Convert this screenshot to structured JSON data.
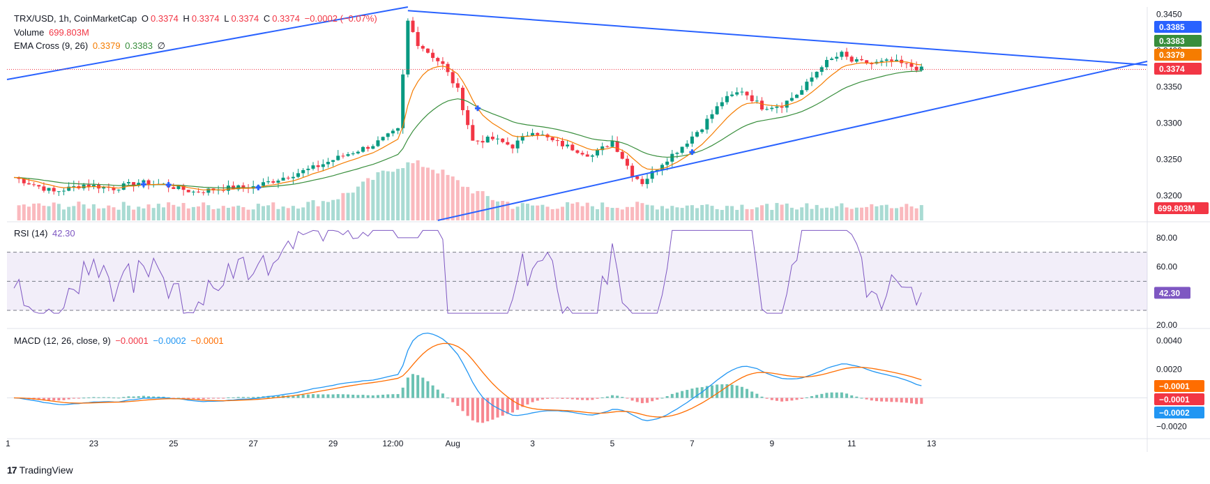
{
  "header": {
    "symbol": "TRX/USD, 1h, CoinMarketCap",
    "o_label": "O",
    "o": "0.3374",
    "h_label": "H",
    "h": "0.3374",
    "l_label": "L",
    "l": "0.3374",
    "c_label": "C",
    "c": "0.3374",
    "change": "−0.0002 (−0.07%)",
    "volume_label": "Volume",
    "volume": "699.803M",
    "ema_label": "EMA Cross (9, 26)",
    "ema_fast": "0.3379",
    "ema_slow": "0.3383",
    "ema_extra": "∅",
    "rsi_label": "RSI (14)",
    "rsi": "42.30",
    "macd_label": "MACD (12, 26, close, 9)",
    "macd_hist": "−0.0001",
    "macd_line": "−0.0002",
    "macd_signal": "−0.0001"
  },
  "footer": {
    "brand": "TradingView",
    "logo": "17"
  },
  "colors": {
    "up": "#089981",
    "down": "#f23645",
    "ema_fast": "#f57c00",
    "ema_slow": "#388e3c",
    "trend": "#2962ff",
    "rsi": "#7e57c2",
    "macd": "#2196f3",
    "signal": "#ff6d00",
    "cross": "#2962ff"
  },
  "chart_data": {
    "type": "candlestick",
    "symbol": "TRX/USD",
    "interval": "1h",
    "x_ticks": [
      "1",
      "23",
      "25",
      "27",
      "29",
      "12:00",
      "Aug",
      "3",
      "5",
      "7",
      "9",
      "11",
      "13"
    ],
    "price_axis": {
      "ticks": [
        0.32,
        0.325,
        0.33,
        0.335,
        0.34,
        0.345
      ],
      "tick_labels": [
        "0.3200",
        "0.3250",
        "0.3300",
        "0.3350",
        "0.3400",
        "0.3450"
      ],
      "range": [
        0.3185,
        0.346
      ]
    },
    "price_tags": [
      {
        "label": "0.3385",
        "value": 0.3385,
        "color": "#2962ff"
      },
      {
        "label": "0.3383",
        "value": 0.3383,
        "color": "#388e3c"
      },
      {
        "label": "0.3379",
        "value": 0.3379,
        "color": "#f57c00"
      },
      {
        "label": "0.3374",
        "value": 0.3374,
        "color": "#f23645"
      }
    ],
    "volume_tag": "699.803M",
    "close_path": [
      {
        "x": 0,
        "y": 0.3225
      },
      {
        "x": 8,
        "y": 0.3205
      },
      {
        "x": 14,
        "y": 0.3215
      },
      {
        "x": 20,
        "y": 0.321
      },
      {
        "x": 25,
        "y": 0.3218
      },
      {
        "x": 30,
        "y": 0.3215
      },
      {
        "x": 36,
        "y": 0.3205
      },
      {
        "x": 42,
        "y": 0.321
      },
      {
        "x": 48,
        "y": 0.3212
      },
      {
        "x": 54,
        "y": 0.3225
      },
      {
        "x": 60,
        "y": 0.3238
      },
      {
        "x": 66,
        "y": 0.3255
      },
      {
        "x": 72,
        "y": 0.327
      },
      {
        "x": 77,
        "y": 0.329
      },
      {
        "x": 79,
        "y": 0.344
      },
      {
        "x": 81,
        "y": 0.341
      },
      {
        "x": 86,
        "y": 0.338
      },
      {
        "x": 89,
        "y": 0.3345
      },
      {
        "x": 92,
        "y": 0.3275
      },
      {
        "x": 96,
        "y": 0.3278
      },
      {
        "x": 100,
        "y": 0.3268
      },
      {
        "x": 104,
        "y": 0.329
      },
      {
        "x": 108,
        "y": 0.3275
      },
      {
        "x": 112,
        "y": 0.3265
      },
      {
        "x": 116,
        "y": 0.3255
      },
      {
        "x": 120,
        "y": 0.3275
      },
      {
        "x": 124,
        "y": 0.323
      },
      {
        "x": 126,
        "y": 0.3218
      },
      {
        "x": 130,
        "y": 0.3245
      },
      {
        "x": 134,
        "y": 0.3268
      },
      {
        "x": 138,
        "y": 0.3295
      },
      {
        "x": 142,
        "y": 0.333
      },
      {
        "x": 146,
        "y": 0.3345
      },
      {
        "x": 150,
        "y": 0.3322
      },
      {
        "x": 154,
        "y": 0.3325
      },
      {
        "x": 158,
        "y": 0.3345
      },
      {
        "x": 162,
        "y": 0.338
      },
      {
        "x": 166,
        "y": 0.3395
      },
      {
        "x": 168,
        "y": 0.3385
      },
      {
        "x": 172,
        "y": 0.3382
      },
      {
        "x": 176,
        "y": 0.3385
      },
      {
        "x": 180,
        "y": 0.3378
      },
      {
        "x": 182,
        "y": 0.3374
      }
    ],
    "rsi": {
      "value": 42.3,
      "levels": [
        70,
        50,
        30
      ],
      "ticks": [
        20,
        40,
        60,
        80
      ],
      "tick_labels": [
        "20.00",
        "60.00",
        "80.00"
      ],
      "range": [
        18,
        90
      ]
    },
    "macd": {
      "ticks": [
        -0.002,
        0,
        0.002,
        0.004
      ],
      "tick_labels": [
        "−0.0020",
        "0.0020",
        "0.0040"
      ],
      "range": [
        -0.0028,
        0.0048
      ],
      "tags": [
        {
          "label": "−0.0001",
          "color": "#ff6d00"
        },
        {
          "label": "−0.0001",
          "color": "#f23645"
        },
        {
          "label": "−0.0002",
          "color": "#2196f3"
        }
      ]
    }
  }
}
